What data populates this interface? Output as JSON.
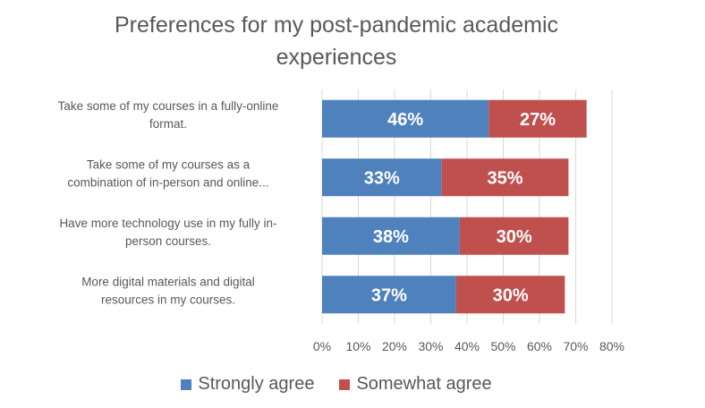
{
  "title_lines": [
    "Preferences for my post-pandemic academic",
    "experiences"
  ],
  "colors": {
    "strongly": "#4f81bd",
    "somewhat": "#c0504d",
    "grid": "#d9d9d9",
    "text": "#595959"
  },
  "chart_data": {
    "type": "bar",
    "orientation": "horizontal",
    "stacked": true,
    "title": "Preferences for my post-pandemic academic experiences",
    "categories": [
      [
        "Take some of my courses in a fully-online",
        "format."
      ],
      [
        "Take some of my courses as a",
        "combination of in-person and online..."
      ],
      [
        "Have more technology use in my fully in-",
        "person courses."
      ],
      [
        "More digital materials and digital",
        "resources in my courses."
      ]
    ],
    "series": [
      {
        "name": "Strongly agree",
        "values": [
          0.46,
          0.33,
          0.38,
          0.37
        ],
        "labels": [
          "46%",
          "33%",
          "38%",
          "37%"
        ]
      },
      {
        "name": "Somewhat agree",
        "values": [
          0.27,
          0.35,
          0.3,
          0.3
        ],
        "labels": [
          "27%",
          "35%",
          "30%",
          "30%"
        ]
      }
    ],
    "xlim": [
      0,
      0.8
    ],
    "xticks": [
      "0%",
      "10%",
      "20%",
      "30%",
      "40%",
      "50%",
      "60%",
      "70%",
      "80%"
    ],
    "grid": true,
    "legend_position": "bottom"
  }
}
